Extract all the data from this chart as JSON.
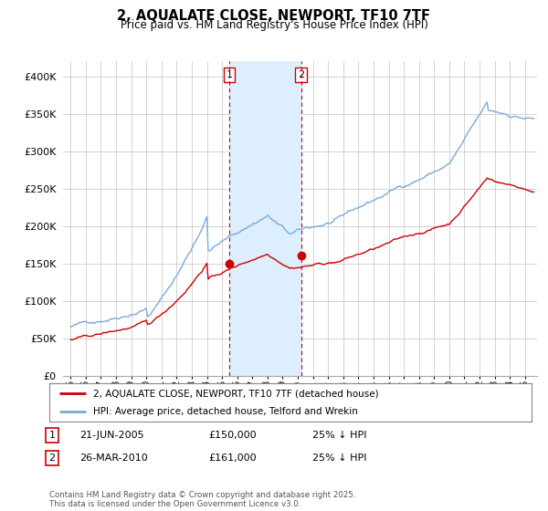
{
  "title": "2, AQUALATE CLOSE, NEWPORT, TF10 7TF",
  "subtitle": "Price paid vs. HM Land Registry's House Price Index (HPI)",
  "legend_line1": "2, AQUALATE CLOSE, NEWPORT, TF10 7TF (detached house)",
  "legend_line2": "HPI: Average price, detached house, Telford and Wrekin",
  "sale1_date": "21-JUN-2005",
  "sale1_price": "£150,000",
  "sale1_note": "25% ↓ HPI",
  "sale2_date": "26-MAR-2010",
  "sale2_price": "£161,000",
  "sale2_note": "25% ↓ HPI",
  "footer": "Contains HM Land Registry data © Crown copyright and database right 2025.\nThis data is licensed under the Open Government Licence v3.0.",
  "vline1_x": 2005.47,
  "vline2_x": 2010.23,
  "price_color": "#cc0000",
  "hpi_color": "#7aaadd",
  "vline_color": "#cc0000",
  "shade_color": "#ddeeff",
  "grid_color": "#cccccc",
  "background_color": "#ffffff",
  "ylim": [
    0,
    420000
  ],
  "xlim": [
    1994.5,
    2025.8
  ]
}
